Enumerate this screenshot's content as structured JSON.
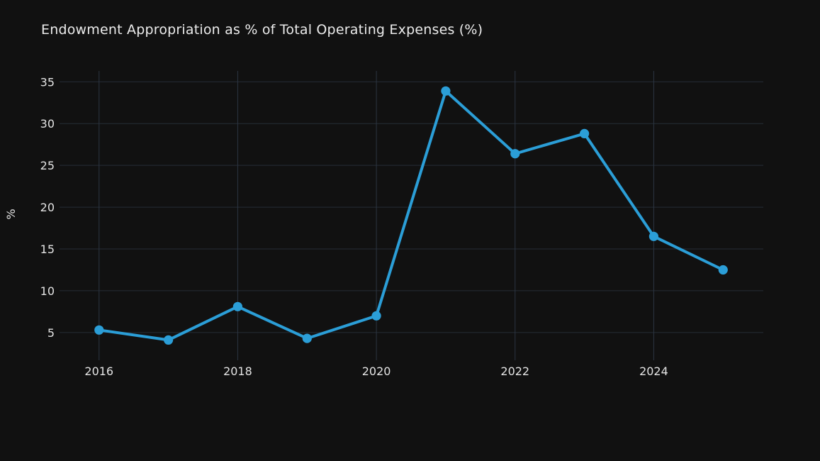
{
  "chart_data": {
    "type": "line",
    "title": "Endowment Appropriation as % of Total Operating Expenses (%)",
    "ylabel": "%",
    "xlabel": "",
    "x": [
      2016,
      2017,
      2018,
      2019,
      2020,
      2021,
      2022,
      2023,
      2024,
      2025
    ],
    "values": [
      5.3,
      4.1,
      8.1,
      4.3,
      7.0,
      33.9,
      26.4,
      28.8,
      16.5,
      12.5
    ],
    "xticks": [
      2016,
      2018,
      2020,
      2022,
      2024
    ],
    "yticks": [
      5,
      10,
      15,
      20,
      25,
      30,
      35
    ],
    "xlim": [
      2015.43,
      2025.58
    ],
    "ylim": [
      2.1,
      36.3
    ],
    "grid": true,
    "legend_position": "none",
    "colors": {
      "line": "#2b9ed7",
      "marker": "#2b9ed7",
      "background": "#111111",
      "grid_horizontal": "#262d37",
      "grid_vertical": "#2c3542",
      "tick_text": "#e4e4e4",
      "title_text": "#ececec"
    }
  }
}
